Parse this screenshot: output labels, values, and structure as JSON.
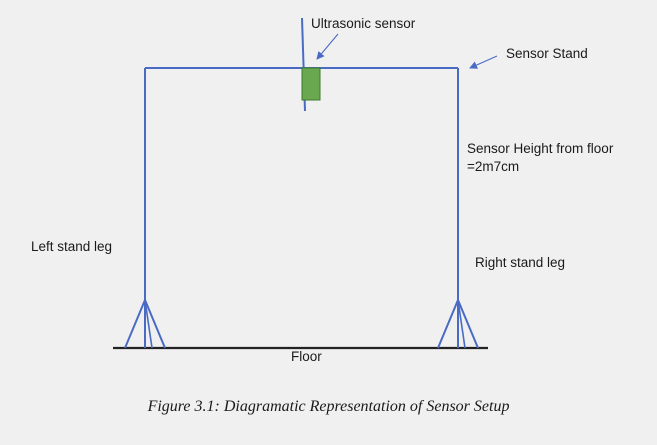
{
  "diagram": {
    "labels": {
      "ultrasonic_sensor": "Ultrasonic sensor",
      "sensor_stand": "Sensor Stand",
      "sensor_height_line1": "Sensor Height from floor",
      "sensor_height_line2": "=2m7cm",
      "left_stand_leg": "Left stand leg",
      "right_stand_leg": "Right stand leg",
      "floor": "Floor"
    },
    "caption": "Figure 3.1: Diagramatic Representation of Sensor Setup",
    "colors": {
      "frame": "#4a6bc4",
      "sensor_fill": "#6aa84f",
      "sensor_stroke": "#3d7a2a",
      "floor": "#222222",
      "arrow": "#4a6bc4",
      "background": "#f0f0f0"
    }
  }
}
